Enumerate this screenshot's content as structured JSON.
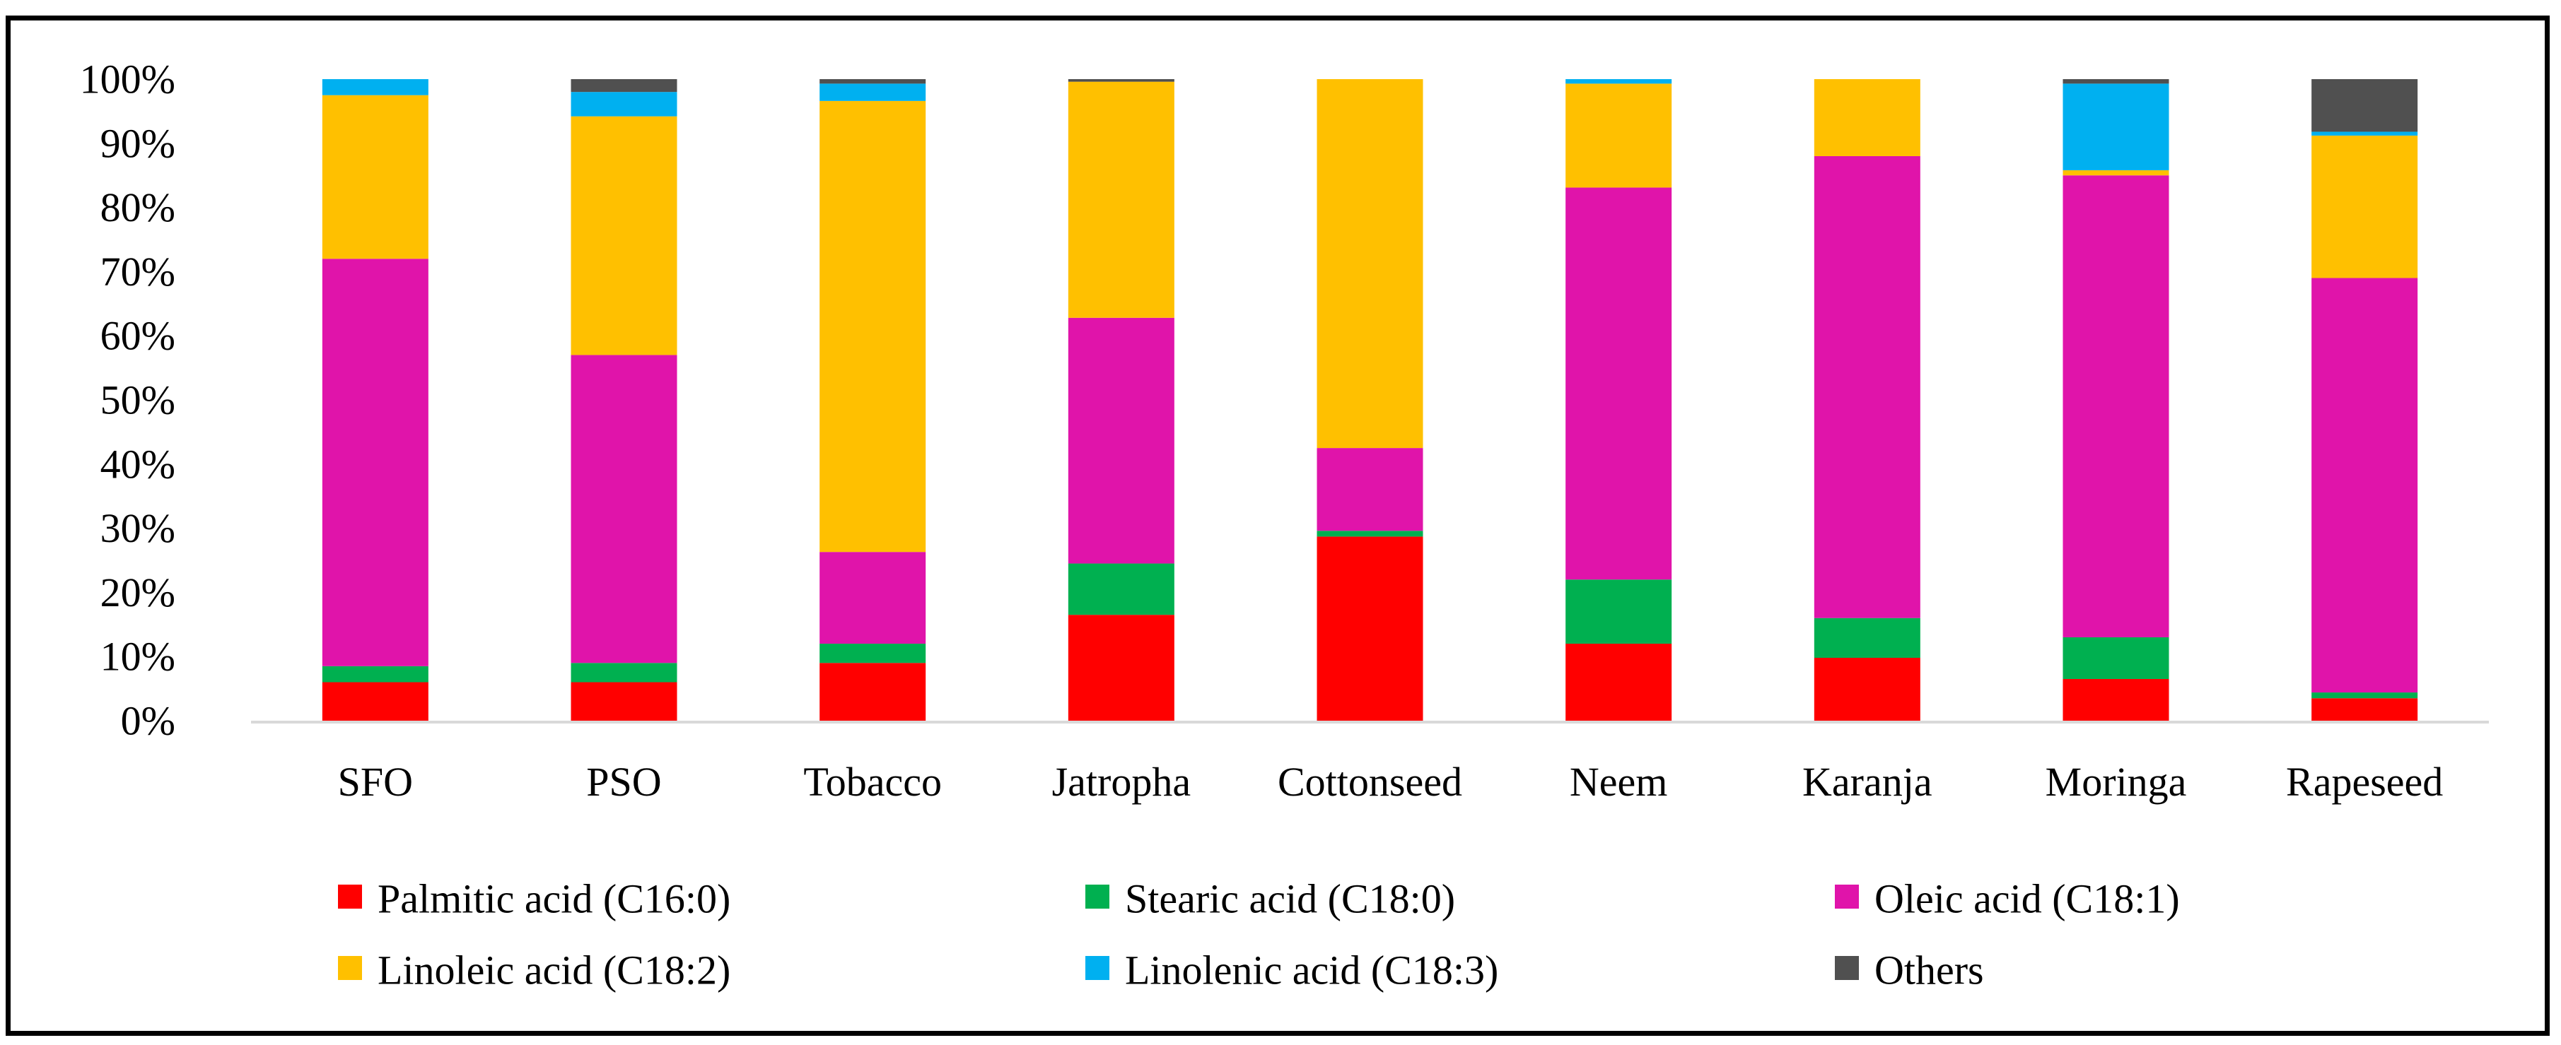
{
  "chart_data": {
    "type": "bar",
    "stacked": "percent",
    "title": "",
    "xlabel": "",
    "ylabel": "",
    "ylim": [
      0,
      100
    ],
    "yticks": [
      "0%",
      "10%",
      "20%",
      "30%",
      "40%",
      "50%",
      "60%",
      "70%",
      "80%",
      "90%",
      "100%"
    ],
    "grid": false,
    "legend_position": "bottom",
    "categories": [
      "SFO",
      "PSO",
      "Tobacco",
      "Jatropha",
      "Cottonseed",
      "Neem",
      "Karanja",
      "Moringa",
      "Rapeseed"
    ],
    "series": [
      {
        "name": "Palmitic acid (C16:0)",
        "color": "#FF0000",
        "values": [
          6.0,
          6.0,
          9.0,
          16.5,
          28.7,
          12.0,
          9.8,
          6.5,
          3.5
        ]
      },
      {
        "name": "Stearic acid (C18:0)",
        "color": "#00B050",
        "values": [
          2.5,
          3.0,
          3.0,
          8.0,
          0.9,
          10.0,
          6.2,
          6.5,
          0.9
        ]
      },
      {
        "name": "Oleic acid (C18:1)",
        "color": "#E014AA",
        "values": [
          63.5,
          48.0,
          14.3,
          38.3,
          12.9,
          61.1,
          72.0,
          72.0,
          64.6
        ]
      },
      {
        "name": "Linoleic acid (C18:2)",
        "color": "#FFC000",
        "values": [
          25.5,
          37.2,
          70.3,
          36.8,
          57.5,
          16.2,
          12.0,
          0.8,
          22.2
        ]
      },
      {
        "name": "Linolenic acid (C18:3)",
        "color": "#00B0F0",
        "values": [
          2.5,
          3.8,
          2.7,
          0.0,
          0.0,
          0.7,
          0.0,
          13.5,
          0.6
        ]
      },
      {
        "name": "Others",
        "color": "#505050",
        "values": [
          0.0,
          2.0,
          0.7,
          0.4,
          0.0,
          0.0,
          0.0,
          0.7,
          8.2
        ]
      }
    ]
  }
}
